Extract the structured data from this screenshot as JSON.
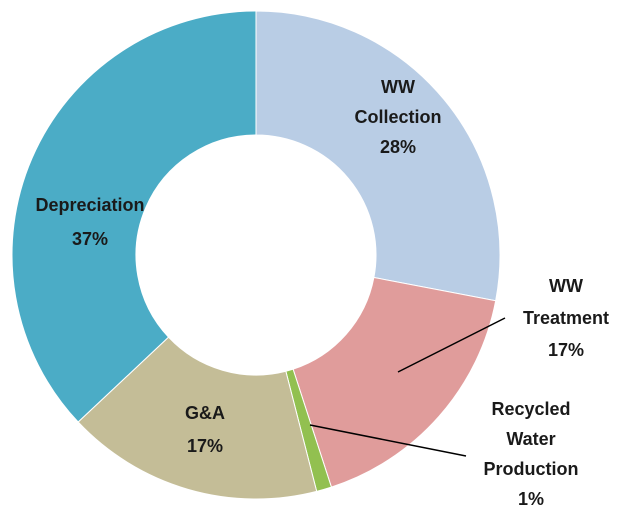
{
  "chart_data": {
    "type": "donut",
    "categories": [
      "WW Collection",
      "WW Treatment",
      "Recycled Water Production",
      "G&A",
      "Depreciation"
    ],
    "values": [
      28,
      17,
      1,
      17,
      37
    ],
    "value_labels": [
      "28%",
      "17%",
      "1%",
      "17%",
      "37%"
    ],
    "colors": [
      "#b9cde5",
      "#e09c9b",
      "#92c050",
      "#c4bd97",
      "#4bacc6"
    ]
  }
}
